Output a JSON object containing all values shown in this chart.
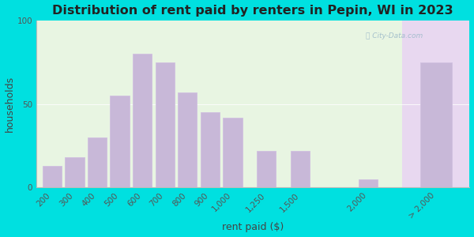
{
  "title": "Distribution of rent paid by renters in Pepin, WI in 2023",
  "xlabel": "rent paid ($)",
  "ylabel": "households",
  "bar_color": "#c8b8d8",
  "bar_edge_color": "#d0c0e0",
  "background_outer": "#00e0e0",
  "ylim": [
    0,
    100
  ],
  "yticks": [
    0,
    50,
    100
  ],
  "categories": [
    "200",
    "300",
    "400",
    "500",
    "600",
    "700",
    "800",
    "900",
    "1,000",
    "1,250",
    "1,500",
    "2,000",
    "> 2,000"
  ],
  "values": [
    13,
    18,
    30,
    55,
    80,
    75,
    57,
    45,
    42,
    22,
    22,
    5,
    75
  ],
  "x_positions": [
    0,
    1,
    2,
    3,
    4,
    5,
    6,
    7,
    8,
    9.5,
    11,
    14,
    17
  ],
  "title_fontsize": 11.5,
  "axis_label_fontsize": 9,
  "tick_fontsize": 7.5
}
